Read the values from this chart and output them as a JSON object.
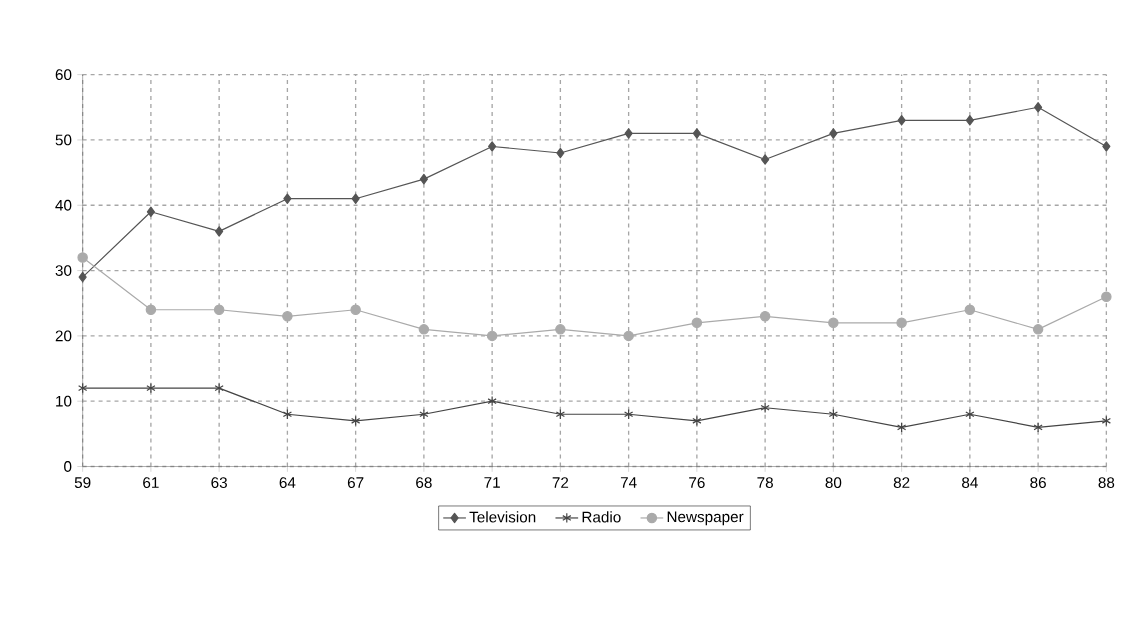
{
  "chart_data": {
    "type": "line",
    "categories": [
      "59",
      "61",
      "63",
      "64",
      "67",
      "68",
      "71",
      "72",
      "74",
      "76",
      "78",
      "80",
      "82",
      "84",
      "86",
      "88"
    ],
    "series": [
      {
        "name": "Television",
        "color": "#555555",
        "marker": "diamond",
        "values": [
          29,
          39,
          36,
          41,
          41,
          44,
          49,
          48,
          51,
          51,
          47,
          51,
          53,
          53,
          55,
          49
        ]
      },
      {
        "name": "Radio",
        "color": "#444444",
        "marker": "cross",
        "values": [
          12,
          12,
          12,
          8,
          7,
          8,
          10,
          8,
          8,
          7,
          9,
          8,
          6,
          8,
          6,
          7
        ]
      },
      {
        "name": "Newspaper",
        "color": "#aaaaaa",
        "marker": "circle",
        "values": [
          32,
          24,
          24,
          23,
          24,
          21,
          20,
          21,
          20,
          22,
          23,
          22,
          22,
          24,
          21,
          26
        ]
      }
    ],
    "ylim": [
      0,
      60
    ],
    "yticks": [
      0,
      10,
      20,
      30,
      40,
      50,
      60
    ],
    "grid": true,
    "legend": "bottom"
  }
}
